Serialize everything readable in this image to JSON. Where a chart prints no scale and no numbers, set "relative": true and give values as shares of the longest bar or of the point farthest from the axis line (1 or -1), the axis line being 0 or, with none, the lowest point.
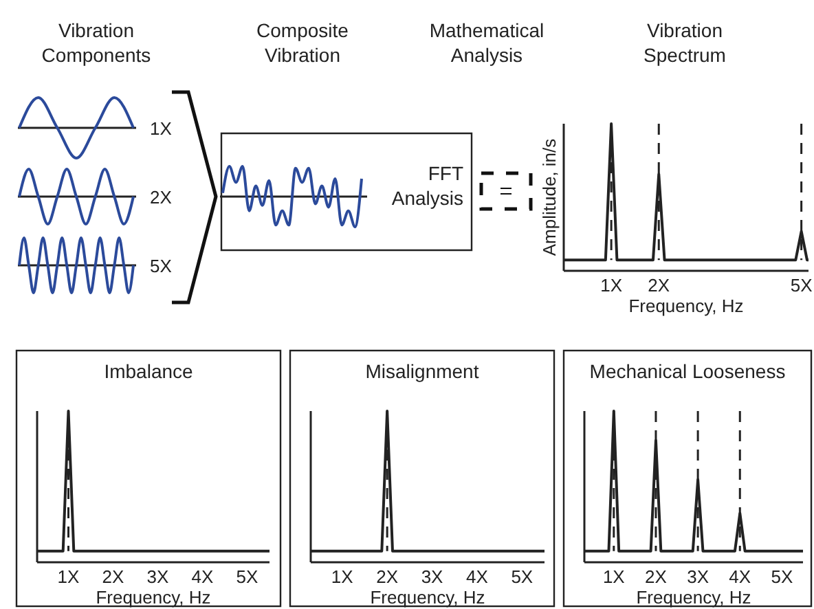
{
  "chart_data": [
    {
      "type": "other",
      "annotations": [
        "Vibration Components",
        "Composite Vibration",
        "Mathematical Analysis",
        "FFT Analysis",
        "1X",
        "2X",
        "5X"
      ]
    },
    {
      "type": "line",
      "relative": true,
      "categories": [
        null,
        null,
        null,
        null,
        null,
        null,
        null
      ],
      "series": [
        {
          "color": "#2b4a9b",
          "values": [
            0,
            1,
            0,
            -1,
            0,
            1,
            0
          ]
        }
      ]
    },
    {
      "type": "line",
      "relative": true,
      "categories": [
        null,
        null,
        null,
        null,
        null,
        null,
        null,
        null,
        null,
        null,
        null,
        null,
        null
      ],
      "series": [
        {
          "color": "#2b4a9b",
          "values": [
            0,
            1,
            0,
            -1,
            0,
            1,
            0,
            -1,
            0,
            1,
            0,
            -1,
            0
          ]
        }
      ]
    },
    {
      "type": "line",
      "relative": true,
      "categories": [
        null,
        null,
        null,
        null,
        null,
        null,
        null,
        null,
        null,
        null,
        null,
        null,
        null,
        null,
        null,
        null,
        null,
        null,
        null,
        null,
        null,
        null,
        null,
        null,
        null
      ],
      "series": [
        {
          "color": "#2b4a9b",
          "values": [
            0,
            1,
            0,
            -1,
            0,
            1,
            0,
            -1,
            0,
            1,
            0,
            -1,
            0,
            1,
            0,
            -1,
            0,
            1,
            0,
            -1,
            0,
            1,
            0,
            -1,
            0
          ]
        }
      ]
    },
    {
      "type": "line",
      "relative": true,
      "categories": [
        null,
        null,
        null,
        null,
        null,
        null,
        null,
        null,
        null,
        null,
        null,
        null,
        null,
        null,
        null,
        null,
        null,
        null,
        null,
        null,
        null,
        null
      ],
      "series": [
        {
          "color": "#2b4a9b",
          "values": [
            0.12,
            1,
            0.47,
            1,
            -0.47,
            0.35,
            -0.29,
            0.53,
            -0.94,
            -0.47,
            -0.94,
            0.94,
            0.47,
            0.94,
            -0.24,
            0.35,
            -0.35,
            0.59,
            -0.94,
            -0.47,
            -1,
            0.59
          ]
        }
      ]
    },
    {
      "type": "line",
      "title": "Vibration Spectrum",
      "xlabel": "Frequency, Hz",
      "ylabel": "Amplitude, in/s",
      "relative": true,
      "xlim": [
        0,
        5.15
      ],
      "xticks": [
        {
          "value": 1,
          "label": "1X"
        },
        {
          "value": 2,
          "label": "2X"
        },
        {
          "value": 5,
          "label": "5X"
        }
      ],
      "series": [
        {
          "color": "#222222",
          "x": [
            0,
            0.88,
            1,
            1.12,
            1.88,
            2,
            2.12,
            4.88,
            5,
            5.12,
            5.15
          ],
          "values": [
            0,
            0,
            1,
            0,
            0,
            0.63,
            0,
            0,
            0.21,
            0,
            0
          ]
        }
      ],
      "ref_lines": [
        {
          "axis": "x",
          "value": 1,
          "line_style": "dashed",
          "color": "#222222"
        },
        {
          "axis": "x",
          "value": 2,
          "line_style": "dashed",
          "color": "#222222"
        },
        {
          "axis": "x",
          "value": 5,
          "line_style": "dashed",
          "color": "#222222"
        }
      ]
    },
    {
      "type": "line",
      "title": "Imbalance",
      "xlabel": "Frequency, Hz",
      "relative": true,
      "xlim": [
        0.3,
        5.5
      ],
      "xticks": [
        {
          "value": 1,
          "label": "1X"
        },
        {
          "value": 2,
          "label": "2X"
        },
        {
          "value": 3,
          "label": "3X"
        },
        {
          "value": 4,
          "label": "4X"
        },
        {
          "value": 5,
          "label": "5X"
        }
      ],
      "series": [
        {
          "color": "#222222",
          "x": [
            0.3,
            0.88,
            1,
            1.12,
            5.5
          ],
          "values": [
            0,
            0,
            1,
            0,
            0
          ]
        }
      ],
      "ref_lines": [
        {
          "axis": "x",
          "value": 1,
          "line_style": "dashed",
          "color": "#222222"
        }
      ]
    },
    {
      "type": "line",
      "title": "Misalignment",
      "xlabel": "Frequency, Hz",
      "relative": true,
      "xlim": [
        0.3,
        5.5
      ],
      "xticks": [
        {
          "value": 1,
          "label": "1X"
        },
        {
          "value": 2,
          "label": "2X"
        },
        {
          "value": 3,
          "label": "3X"
        },
        {
          "value": 4,
          "label": "4X"
        },
        {
          "value": 5,
          "label": "5X"
        }
      ],
      "series": [
        {
          "color": "#222222",
          "x": [
            0.3,
            1.88,
            2,
            2.12,
            5.5
          ],
          "values": [
            0,
            0,
            1,
            0,
            0
          ]
        }
      ],
      "ref_lines": [
        {
          "axis": "x",
          "value": 2,
          "line_style": "dashed",
          "color": "#222222"
        }
      ]
    },
    {
      "type": "line",
      "title": "Mechanical Looseness",
      "xlabel": "Frequency, Hz",
      "relative": true,
      "xlim": [
        0.3,
        5.5
      ],
      "xticks": [
        {
          "value": 1,
          "label": "1X"
        },
        {
          "value": 2,
          "label": "2X"
        },
        {
          "value": 3,
          "label": "3X"
        },
        {
          "value": 4,
          "label": "4X"
        },
        {
          "value": 5,
          "label": "5X"
        }
      ],
      "series": [
        {
          "color": "#222222",
          "x": [
            0.3,
            0.88,
            1,
            1.12,
            1.88,
            2,
            2.12,
            2.88,
            3,
            3.12,
            3.88,
            4,
            4.12,
            5.5
          ],
          "values": [
            0,
            0,
            1,
            0,
            0,
            0.79,
            0,
            0,
            0.51,
            0,
            0,
            0.27,
            0,
            0
          ]
        }
      ],
      "ref_lines": [
        {
          "axis": "x",
          "value": 1,
          "line_style": "dashed",
          "color": "#222222"
        },
        {
          "axis": "x",
          "value": 2,
          "line_style": "dashed",
          "color": "#222222"
        },
        {
          "axis": "x",
          "value": 3,
          "line_style": "dashed",
          "color": "#222222"
        },
        {
          "axis": "x",
          "value": 4,
          "line_style": "dashed",
          "color": "#222222"
        }
      ]
    }
  ]
}
